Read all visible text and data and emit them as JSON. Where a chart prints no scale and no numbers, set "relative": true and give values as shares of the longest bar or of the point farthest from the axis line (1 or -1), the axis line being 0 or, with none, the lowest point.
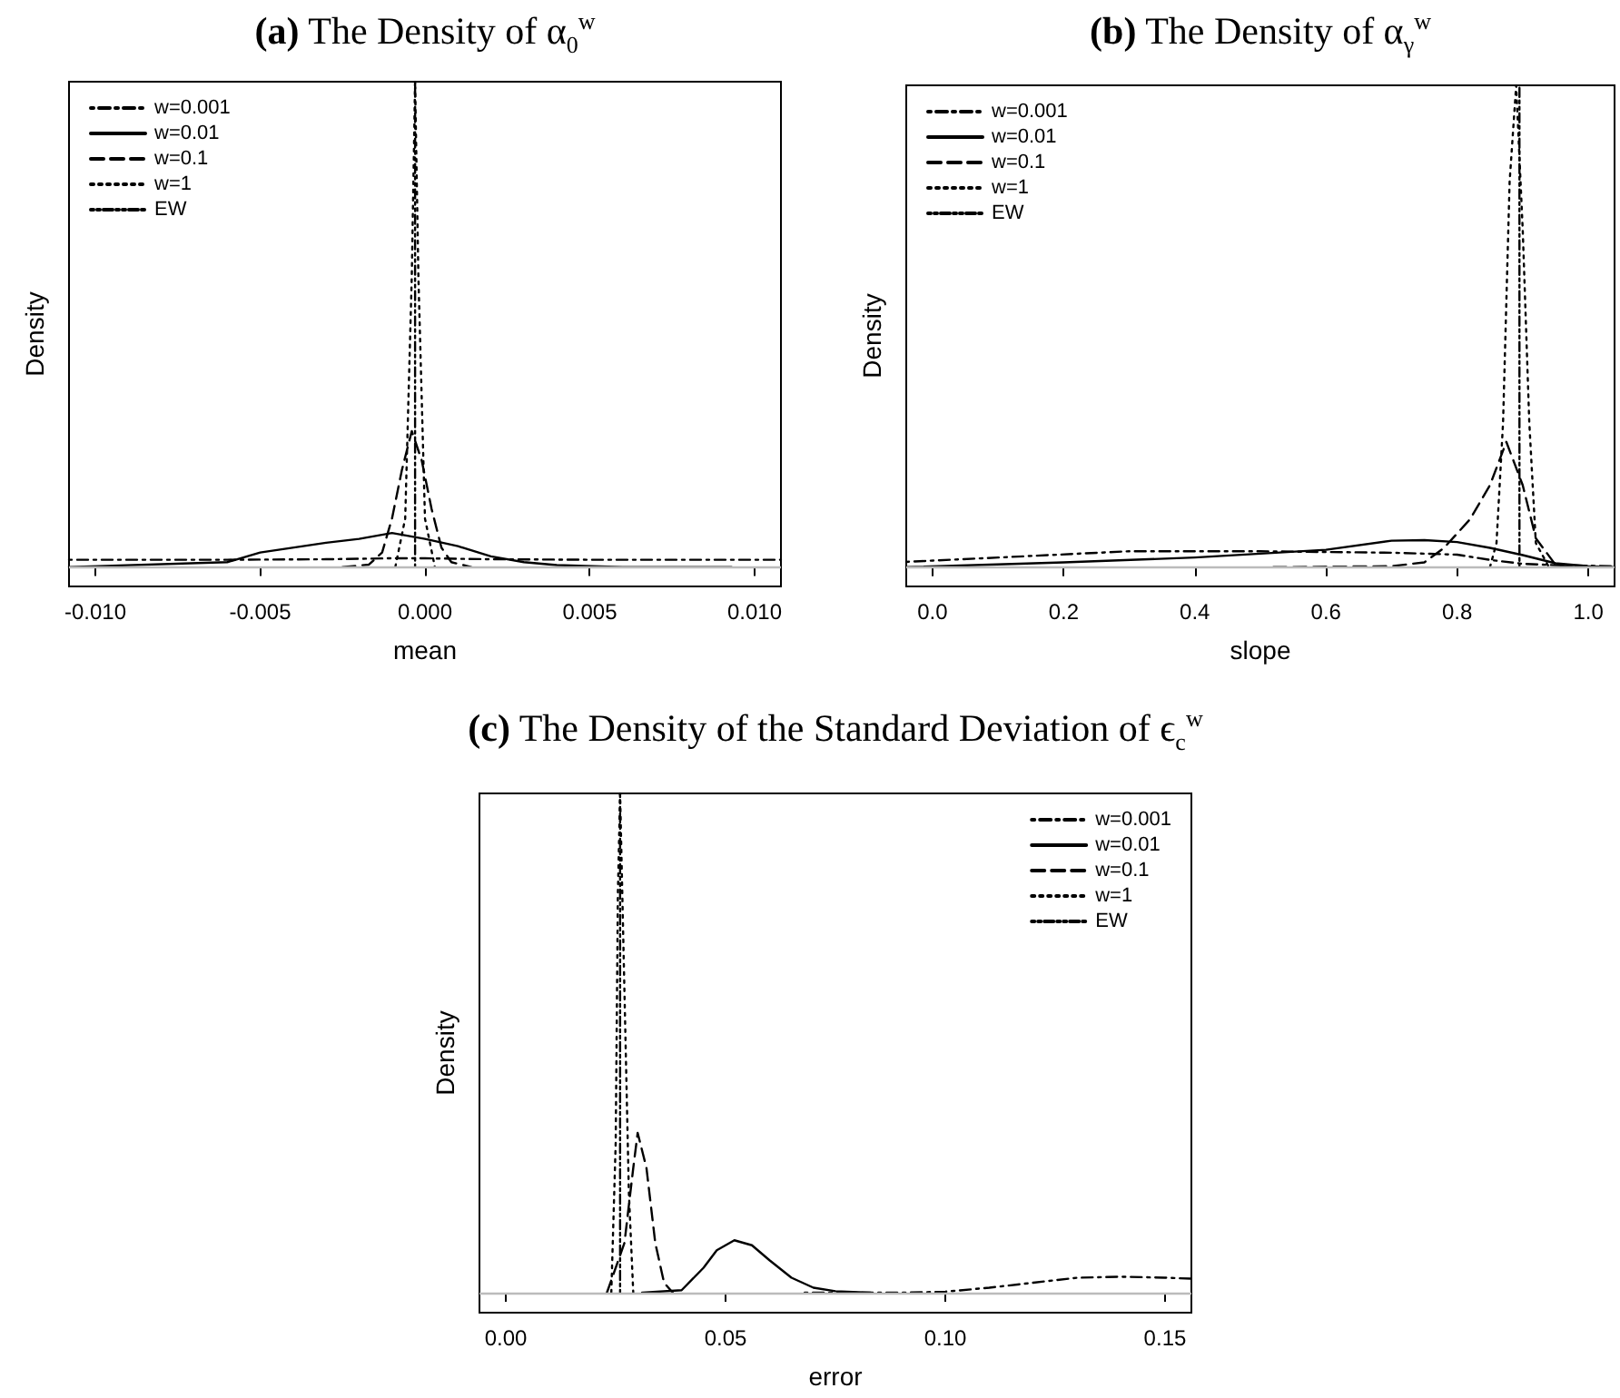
{
  "chart_data": [
    {
      "type": "line",
      "title": "(a) The Density of α$_{0}$$^{w}$",
      "xlabel": "mean",
      "ylabel": "Density",
      "relative": true,
      "legend": "top left",
      "xlim": [
        -0.0108,
        0.0108
      ],
      "xticks": [
        {
          "value": -0.01,
          "label": "-0.010"
        },
        {
          "value": -0.005,
          "label": "-0.005"
        },
        {
          "value": 0,
          "label": "0.000"
        },
        {
          "value": 0.005,
          "label": "0.005"
        },
        {
          "value": 0.01,
          "label": "0.010"
        }
      ],
      "ref_lines": [
        {
          "axis": "y",
          "value": 0,
          "color": "#bbbbbb"
        }
      ],
      "series": [
        {
          "name": "w=0.001",
          "color": "#000000",
          "line_style": "dashdot",
          "x": [
            -0.0108,
            -0.006,
            -0.003,
            -0.001,
            0,
            0.002,
            0.005,
            0.0108
          ],
          "values": [
            0.015,
            0.015,
            0.016,
            0.018,
            0.018,
            0.016,
            0.015,
            0.015
          ]
        },
        {
          "name": "w=0.01",
          "color": "#000000",
          "line_style": "solid",
          "x": [
            -0.0108,
            -0.006,
            -0.005,
            -0.003,
            -0.002,
            -0.001,
            0,
            0.001,
            0.002,
            0.003,
            0.004,
            0.006,
            0.0093
          ],
          "values": [
            0,
            0.01,
            0.03,
            0.05,
            0.058,
            0.07,
            0.058,
            0.043,
            0.022,
            0.01,
            0.004,
            0,
            0
          ]
        },
        {
          "name": "w=0.1",
          "color": "#000000",
          "line_style": "dashed",
          "x": [
            -0.0025,
            -0.0017,
            -0.0013,
            -0.001,
            -0.0007,
            -0.0004,
            -0.0001,
            0.0002,
            0.0005,
            0.0008,
            0.0014
          ],
          "values": [
            0,
            0.005,
            0.03,
            0.1,
            0.2,
            0.28,
            0.22,
            0.12,
            0.04,
            0.01,
            0
          ]
        },
        {
          "name": "w=1",
          "color": "#000000",
          "line_style": "dotted",
          "x": [
            -0.0009,
            -0.0006,
            -0.0004,
            -0.0003,
            -0.0002,
            0,
            0.0003
          ],
          "values": [
            0,
            0.1,
            0.6,
            1,
            0.6,
            0.1,
            0
          ]
        },
        {
          "name": "EW",
          "color": "#000000",
          "line_style": "dashdotdot",
          "x": [
            -0.0003,
            -0.0003
          ],
          "values": [
            0,
            1
          ]
        }
      ]
    },
    {
      "type": "line",
      "title": "(b) The Density of α$_{γ}$$^{w}$",
      "xlabel": "slope",
      "ylabel": "Density",
      "relative": true,
      "legend": "top left",
      "xlim": [
        -0.04,
        1.04
      ],
      "xticks": [
        {
          "value": 0,
          "label": "0.0"
        },
        {
          "value": 0.2,
          "label": "0.2"
        },
        {
          "value": 0.4,
          "label": "0.4"
        },
        {
          "value": 0.6,
          "label": "0.6"
        },
        {
          "value": 0.8,
          "label": "0.8"
        },
        {
          "value": 1,
          "label": "1.0"
        }
      ],
      "ref_lines": [
        {
          "axis": "y",
          "value": 0,
          "color": "#bbbbbb"
        }
      ],
      "series": [
        {
          "name": "w=0.001",
          "color": "#000000",
          "line_style": "dashdot",
          "x": [
            -0.04,
            0.1,
            0.3,
            0.5,
            0.7,
            0.8,
            0.85,
            0.9,
            0.95,
            1.04
          ],
          "values": [
            0.011,
            0.02,
            0.033,
            0.033,
            0.03,
            0.026,
            0.015,
            0.007,
            0.004,
            0.002
          ]
        },
        {
          "name": "w=0.01",
          "color": "#000000",
          "line_style": "solid",
          "x": [
            -0.04,
            0.2,
            0.4,
            0.6,
            0.7,
            0.75,
            0.8,
            0.85,
            0.9,
            0.95,
            1.0,
            1.04
          ],
          "values": [
            0,
            0.01,
            0.02,
            0.036,
            0.055,
            0.056,
            0.052,
            0.04,
            0.025,
            0.008,
            0.002,
            0
          ]
        },
        {
          "name": "w=0.1",
          "color": "#000000",
          "line_style": "dashed",
          "x": [
            0.52,
            0.7,
            0.75,
            0.78,
            0.82,
            0.85,
            0.875,
            0.9,
            0.92,
            0.95,
            0.98
          ],
          "values": [
            0,
            0.002,
            0.01,
            0.04,
            0.1,
            0.17,
            0.26,
            0.17,
            0.06,
            0.005,
            0
          ]
        },
        {
          "name": "w=1",
          "color": "#000000",
          "line_style": "dotted",
          "x": [
            0.85,
            0.86,
            0.87,
            0.88,
            0.89,
            0.9,
            0.91,
            0.92,
            0.94
          ],
          "values": [
            0,
            0.05,
            0.3,
            0.8,
            1,
            0.7,
            0.3,
            0.05,
            0
          ]
        },
        {
          "name": "EW",
          "color": "#000000",
          "line_style": "dashdotdot",
          "x": [
            0.895,
            0.895
          ],
          "values": [
            0,
            1
          ]
        }
      ]
    },
    {
      "type": "line",
      "title": "(c) The Density of the Standard Deviation of ϵ$_{c}$$^{w}$",
      "xlabel": "error",
      "ylabel": "Density",
      "relative": true,
      "legend": "top right",
      "xlim": [
        -0.006,
        0.156
      ],
      "xticks": [
        {
          "value": 0,
          "label": "0.00"
        },
        {
          "value": 0.05,
          "label": "0.05"
        },
        {
          "value": 0.1,
          "label": "0.10"
        },
        {
          "value": 0.15,
          "label": "0.15"
        }
      ],
      "ref_lines": [
        {
          "axis": "y",
          "value": 0,
          "color": "#bbbbbb"
        }
      ],
      "series": [
        {
          "name": "w=0.001",
          "color": "#000000",
          "line_style": "dashdot",
          "x": [
            0.068,
            0.09,
            0.1,
            0.11,
            0.12,
            0.13,
            0.14,
            0.15,
            0.156
          ],
          "values": [
            0,
            0,
            0.002,
            0.01,
            0.02,
            0.03,
            0.032,
            0.03,
            0.028
          ]
        },
        {
          "name": "w=0.01",
          "color": "#000000",
          "line_style": "solid",
          "x": [
            0.031,
            0.04,
            0.045,
            0.048,
            0.052,
            0.056,
            0.06,
            0.065,
            0.07,
            0.075,
            0.083
          ],
          "values": [
            0,
            0.005,
            0.05,
            0.085,
            0.105,
            0.095,
            0.065,
            0.03,
            0.01,
            0.003,
            0
          ]
        },
        {
          "name": "w=0.1",
          "color": "#000000",
          "line_style": "dashed",
          "x": [
            0.023,
            0.027,
            0.029,
            0.03,
            0.032,
            0.034,
            0.036,
            0.038
          ],
          "values": [
            0,
            0.1,
            0.25,
            0.32,
            0.25,
            0.1,
            0.02,
            0
          ]
        },
        {
          "name": "w=1",
          "color": "#000000",
          "line_style": "dotted",
          "x": [
            0.024,
            0.025,
            0.0255,
            0.026,
            0.027,
            0.028,
            0.029
          ],
          "values": [
            0,
            0.3,
            0.8,
            1,
            0.6,
            0.2,
            0
          ]
        },
        {
          "name": "EW",
          "color": "#000000",
          "line_style": "dashdotdot",
          "x": [
            0.026,
            0.026
          ],
          "values": [
            0,
            1
          ]
        }
      ]
    }
  ]
}
